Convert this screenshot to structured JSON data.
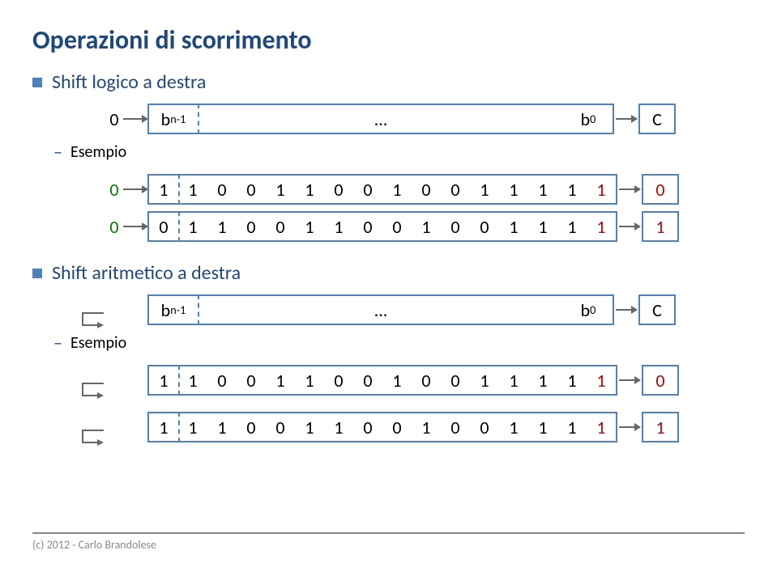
{
  "title": "Operazioni di scorrimento",
  "sections": [
    {
      "heading": "Shift logico a destra",
      "example_label": "Esempio"
    },
    {
      "heading": "Shift aritmetico a destra",
      "example_label": "Esempio"
    }
  ],
  "generic": {
    "in_bit": "0",
    "msb_label_html": "b<span class='sub'>n-1</span>",
    "dots": "...",
    "lsb_label_html": "b<span class='sub'>0</span>",
    "carry_label": "C"
  },
  "colors": {
    "accent": "#1f497d",
    "border": "#4f81bd",
    "arrow": "#666666",
    "red": "#c00000",
    "bg": "#ffffff",
    "footer": "#888888"
  },
  "logical": {
    "rows": [
      {
        "in": "0",
        "bits": [
          "1",
          "1",
          "0",
          "0",
          "1",
          "1",
          "0",
          "0",
          "1",
          "0",
          "0",
          "1",
          "1",
          "1",
          "1",
          "1"
        ],
        "red_last": true,
        "out": "0"
      },
      {
        "in": "0",
        "bits": [
          "0",
          "1",
          "1",
          "0",
          "0",
          "1",
          "1",
          "0",
          "0",
          "1",
          "0",
          "0",
          "1",
          "1",
          "1",
          "1"
        ],
        "red_last": true,
        "out": "1"
      }
    ]
  },
  "arith_generic": {
    "msb_label_html": "b<span class='sub'>n-1</span>",
    "dots": "...",
    "lsb_label_html": "b<span class='sub'>0</span>",
    "carry_label": "C"
  },
  "arith": {
    "rows": [
      {
        "bits": [
          "1",
          "1",
          "0",
          "0",
          "1",
          "1",
          "0",
          "0",
          "1",
          "0",
          "0",
          "1",
          "1",
          "1",
          "1",
          "1"
        ],
        "red_last": true,
        "out": "0"
      },
      {
        "bits": [
          "1",
          "1",
          "1",
          "0",
          "0",
          "1",
          "1",
          "0",
          "0",
          "1",
          "0",
          "0",
          "1",
          "1",
          "1",
          "1"
        ],
        "red_last": true,
        "out": "1"
      }
    ]
  },
  "footer": "(c) 2012 - Carlo Brandolese"
}
